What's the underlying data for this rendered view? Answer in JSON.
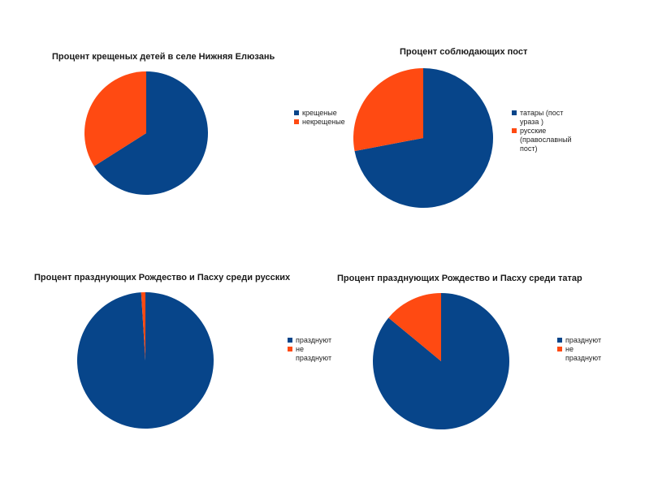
{
  "colors": {
    "series_a": "#07458a",
    "series_b": "#ff4a12"
  },
  "chart_data": [
    {
      "type": "pie",
      "title": "Процент крещеных детей в селе Нижняя Елюзань",
      "categories": [
        "крещеные",
        "некрещеные"
      ],
      "values": [
        66,
        34
      ],
      "legend": "right"
    },
    {
      "type": "pie",
      "title": "Процент соблюдающих пост",
      "categories": [
        "татары (пост ураза )",
        "русские\n(православный пост)"
      ],
      "values": [
        72,
        28
      ],
      "legend": "right"
    },
    {
      "type": "pie",
      "title": "Процент празднующих Рождество и Пасху среди русских",
      "categories": [
        "празднуют",
        "не празднуют"
      ],
      "values": [
        99,
        1
      ],
      "legend": "right"
    },
    {
      "type": "pie",
      "title": "Процент празднующих Рождество и Пасху среди татар",
      "categories": [
        "празднуют",
        "не празднуют"
      ],
      "values": [
        86,
        14
      ],
      "legend": "right"
    }
  ]
}
